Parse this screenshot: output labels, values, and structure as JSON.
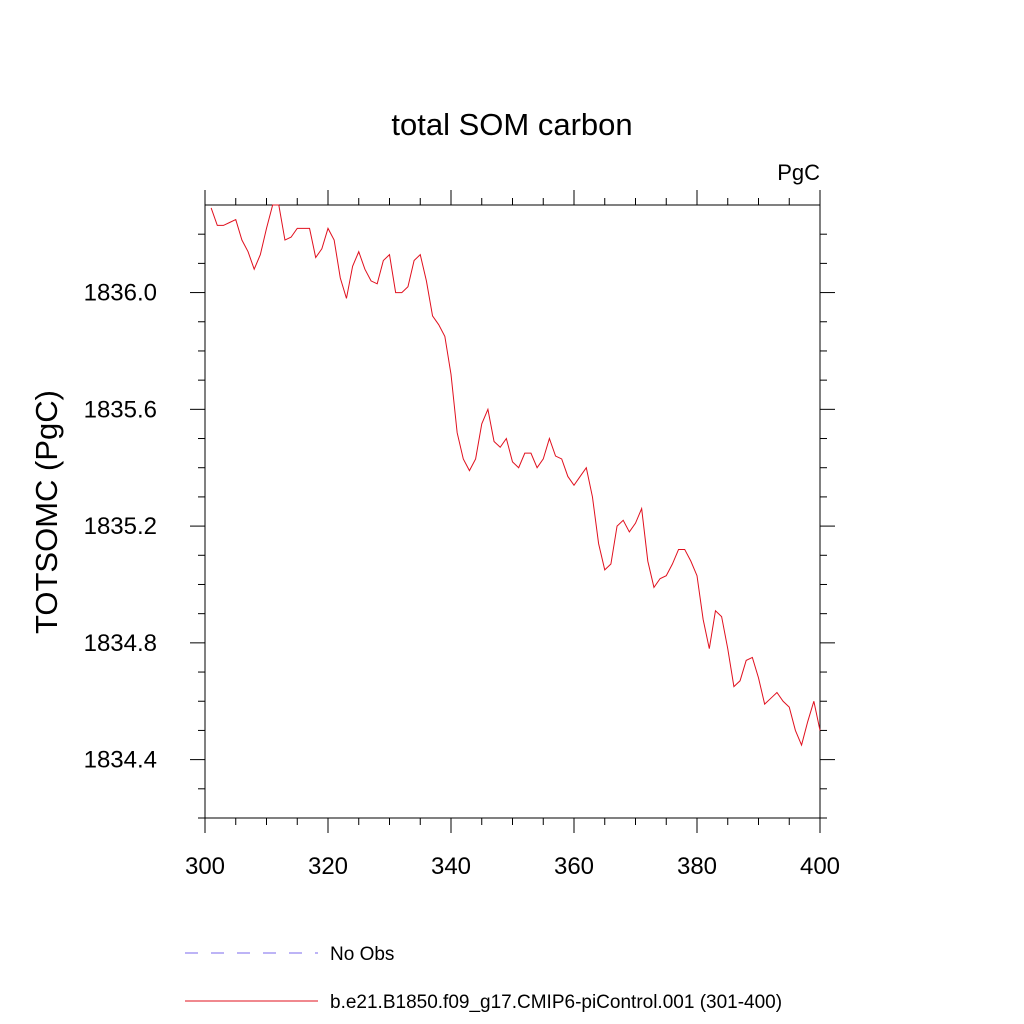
{
  "chart_data": {
    "type": "line",
    "title": "total SOM carbon",
    "units": "PgC",
    "ylabel": "TOTSOMC  (PgC)",
    "xlabel": "",
    "xlim": [
      300,
      400
    ],
    "ylim": [
      1834.2,
      1836.3
    ],
    "xticks": [
      300,
      320,
      340,
      360,
      380,
      400
    ],
    "xtick_labels": [
      "300",
      "320",
      "340",
      "360",
      "380",
      "400"
    ],
    "yticks": [
      1834.4,
      1834.8,
      1835.2,
      1835.6,
      1836.0
    ],
    "ytick_labels": [
      "1834.4",
      "1834.8",
      "1835.2",
      "1835.6",
      "1836.0"
    ],
    "grid": false,
    "legend_position": "bottom",
    "legend": [
      {
        "name": "No Obs",
        "color": "#7b68ee",
        "style": "dashed"
      },
      {
        "name": "b.e21.B1850.f09_g17.CMIP6-piControl.001 (301-400)",
        "color": "#e0101e",
        "style": "solid"
      }
    ],
    "series": [
      {
        "name": "b.e21.B1850.f09_g17.CMIP6-piControl.001 (301-400)",
        "color": "#e0101e",
        "x": [
          301,
          302,
          303,
          304,
          305,
          306,
          307,
          308,
          309,
          310,
          311,
          312,
          313,
          314,
          315,
          316,
          317,
          318,
          319,
          320,
          321,
          322,
          323,
          324,
          325,
          326,
          327,
          328,
          329,
          330,
          331,
          332,
          333,
          334,
          335,
          336,
          337,
          338,
          339,
          340,
          341,
          342,
          343,
          344,
          345,
          346,
          347,
          348,
          349,
          350,
          351,
          352,
          353,
          354,
          355,
          356,
          357,
          358,
          359,
          360,
          361,
          362,
          363,
          364,
          365,
          366,
          367,
          368,
          369,
          370,
          371,
          372,
          373,
          374,
          375,
          376,
          377,
          378,
          379,
          380,
          381,
          382,
          383,
          384,
          385,
          386,
          387,
          388,
          389,
          390,
          391,
          392,
          393,
          394,
          395,
          396,
          397,
          398,
          399,
          400
        ],
        "y": [
          1836.29,
          1836.23,
          1836.23,
          1836.24,
          1836.25,
          1836.18,
          1836.14,
          1836.08,
          1836.13,
          1836.22,
          1836.3,
          1836.3,
          1836.18,
          1836.19,
          1836.22,
          1836.22,
          1836.22,
          1836.12,
          1836.15,
          1836.22,
          1836.18,
          1836.05,
          1835.98,
          1836.09,
          1836.14,
          1836.08,
          1836.04,
          1836.03,
          1836.11,
          1836.13,
          1836.0,
          1836.0,
          1836.02,
          1836.11,
          1836.13,
          1836.04,
          1835.92,
          1835.89,
          1835.85,
          1835.72,
          1835.52,
          1835.43,
          1835.39,
          1835.43,
          1835.55,
          1835.6,
          1835.49,
          1835.47,
          1835.5,
          1835.42,
          1835.4,
          1835.45,
          1835.45,
          1835.4,
          1835.43,
          1835.5,
          1835.44,
          1835.43,
          1835.37,
          1835.34,
          1835.37,
          1835.4,
          1835.3,
          1835.14,
          1835.05,
          1835.07,
          1835.2,
          1835.22,
          1835.18,
          1835.21,
          1835.26,
          1835.08,
          1834.99,
          1835.02,
          1835.03,
          1835.07,
          1835.12,
          1835.12,
          1835.08,
          1835.03,
          1834.88,
          1834.78,
          1834.91,
          1834.89,
          1834.78,
          1834.65,
          1834.67,
          1834.74,
          1834.75,
          1834.68,
          1834.59,
          1834.61,
          1834.63,
          1834.6,
          1834.58,
          1834.5,
          1834.45,
          1834.53,
          1834.6,
          1834.5
        ]
      }
    ]
  }
}
